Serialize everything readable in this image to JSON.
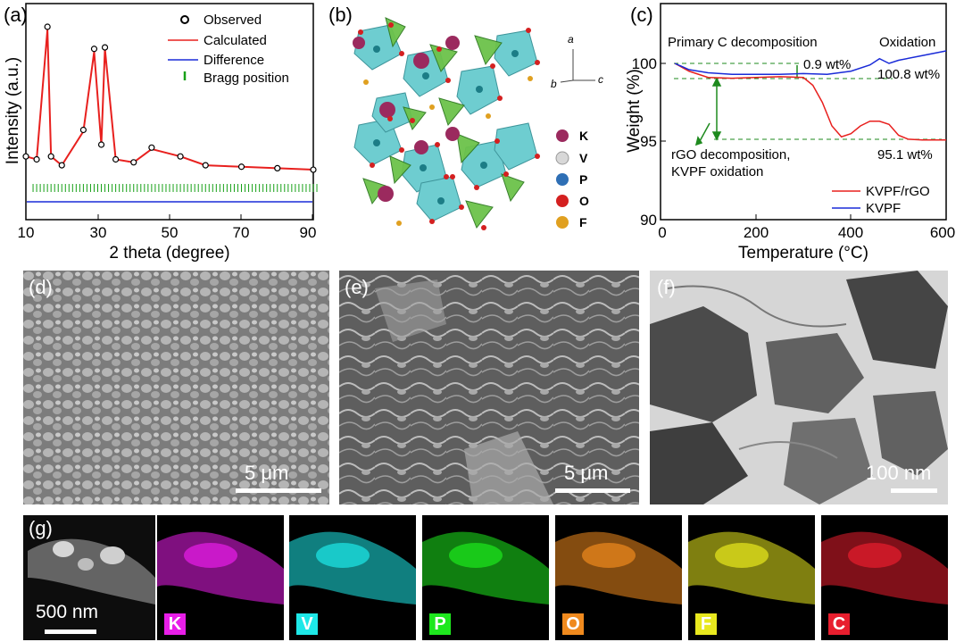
{
  "panels": {
    "a": {
      "label": "(a)",
      "xlabel": "2 theta (degree)",
      "ylabel": "Intensity (a.u.)",
      "legend": [
        "Observed",
        "Calculated",
        "Difference",
        "Bragg position"
      ],
      "xticks": [
        "10",
        "30",
        "50",
        "70",
        "90"
      ]
    },
    "b": {
      "label": "(b)",
      "axes": [
        "a",
        "b",
        "c"
      ],
      "elements": [
        {
          "symbol": "K",
          "color": "#9b2a5e"
        },
        {
          "symbol": "V",
          "color": "#d8d8d8"
        },
        {
          "symbol": "P",
          "color": "#2e6fb5"
        },
        {
          "symbol": "O",
          "color": "#d42020"
        },
        {
          "symbol": "F",
          "color": "#e0a020"
        }
      ]
    },
    "c": {
      "label": "(c)",
      "xlabel": "Temperature (°C)",
      "ylabel": "Weight (%)",
      "xticks": [
        "0",
        "200",
        "400",
        "600"
      ],
      "yticks": [
        "90",
        "95",
        "100"
      ],
      "annotations": {
        "primary": "Primary C decomposition",
        "oxidation": "Oxidation",
        "wt09": "0.9 wt%",
        "wt1008": "100.8 wt%",
        "rgo1": "rGO decomposition,",
        "rgo2": "KVPF oxidation",
        "wt951": "95.1 wt%"
      },
      "legend": [
        {
          "name": "KVPF/rGO",
          "color": "#e8201e"
        },
        {
          "name": "KVPF",
          "color": "#1a2bd8"
        }
      ]
    },
    "d": {
      "label": "(d)",
      "scale": "5 μm"
    },
    "e": {
      "label": "(e)",
      "scale": "5 μm"
    },
    "f": {
      "label": "(f)",
      "scale": "100 nm"
    },
    "g": {
      "label": "(g)",
      "scale": "500 nm",
      "maps": [
        {
          "symbol": "K",
          "color": "#e81ee8"
        },
        {
          "symbol": "V",
          "color": "#1ee8e8"
        },
        {
          "symbol": "P",
          "color": "#1ee81e"
        },
        {
          "symbol": "O",
          "color": "#f08a1e"
        },
        {
          "symbol": "F",
          "color": "#e8e81e"
        },
        {
          "symbol": "C",
          "color": "#e81e2e"
        }
      ]
    }
  },
  "chart_data": [
    {
      "type": "line",
      "panel": "a",
      "xlabel": "2 theta (degree)",
      "ylabel": "Intensity (a.u.)",
      "xlim": [
        10,
        90
      ],
      "series": [
        {
          "name": "Observed",
          "x": [
            10,
            13,
            16,
            17,
            20,
            26,
            29,
            31,
            32,
            35,
            40,
            45,
            53,
            60,
            70,
            80,
            90
          ],
          "y": [
            0.12,
            0.1,
            1.0,
            0.12,
            0.06,
            0.3,
            0.85,
            0.2,
            0.86,
            0.1,
            0.08,
            0.18,
            0.12,
            0.06,
            0.05,
            0.04,
            0.03
          ]
        },
        {
          "name": "Calculated",
          "x": [
            10,
            13,
            16,
            17,
            20,
            26,
            29,
            31,
            32,
            35,
            40,
            45,
            53,
            60,
            70,
            80,
            90
          ],
          "y": [
            0.12,
            0.1,
            0.98,
            0.12,
            0.06,
            0.29,
            0.83,
            0.2,
            0.85,
            0.1,
            0.08,
            0.17,
            0.12,
            0.06,
            0.05,
            0.04,
            0.03
          ]
        }
      ]
    },
    {
      "type": "line",
      "panel": "c",
      "xlabel": "Temperature (°C)",
      "ylabel": "Weight (%)",
      "xlim": [
        0,
        600
      ],
      "ylim": [
        90,
        101
      ],
      "series": [
        {
          "name": "KVPF/rGO",
          "x": [
            30,
            60,
            100,
            150,
            200,
            250,
            300,
            320,
            340,
            360,
            380,
            400,
            420,
            440,
            460,
            480,
            500,
            520,
            550,
            600
          ],
          "y": [
            100.0,
            99.5,
            99.1,
            99.05,
            99.1,
            99.15,
            99.1,
            98.6,
            97.5,
            96.0,
            95.3,
            95.5,
            96.0,
            96.3,
            96.3,
            96.1,
            95.4,
            95.15,
            95.1,
            95.1
          ]
        },
        {
          "name": "KVPF",
          "x": [
            30,
            60,
            100,
            150,
            200,
            250,
            300,
            350,
            400,
            440,
            460,
            480,
            500,
            550,
            600
          ],
          "y": [
            100.0,
            99.6,
            99.4,
            99.3,
            99.3,
            99.3,
            99.35,
            99.3,
            99.5,
            99.9,
            100.3,
            100.0,
            100.2,
            100.5,
            100.8
          ]
        }
      ]
    }
  ]
}
